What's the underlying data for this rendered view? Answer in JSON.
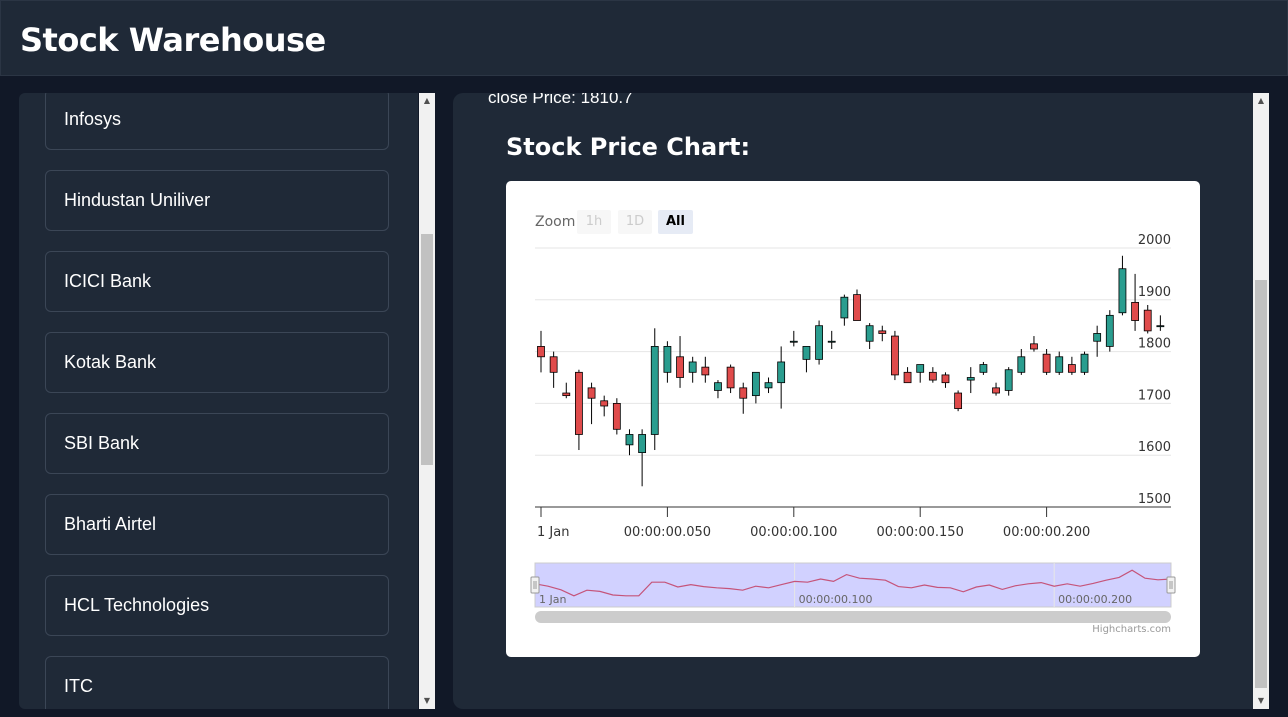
{
  "app": {
    "title": "Stock Warehouse"
  },
  "sidebar": {
    "items": [
      {
        "label": "Infosys"
      },
      {
        "label": "Hindustan Uniliver"
      },
      {
        "label": "ICICI Bank"
      },
      {
        "label": "Kotak Bank"
      },
      {
        "label": "SBI Bank"
      },
      {
        "label": "Bharti Airtel"
      },
      {
        "label": "HCL Technologies"
      },
      {
        "label": "ITC"
      }
    ]
  },
  "main": {
    "close_price": "close Price: 1810.7",
    "chart_heading": "Stock Price Chart:"
  },
  "chart": {
    "zoom_label": "Zoom",
    "zoom_buttons": [
      {
        "label": "1h",
        "state": "disabled"
      },
      {
        "label": "1D",
        "state": "disabled"
      },
      {
        "label": "All",
        "state": "active"
      }
    ],
    "credits": "Highcharts.com"
  },
  "colors": {
    "page_background": "#111827",
    "panel_background": "#1f2937",
    "candle_up": "#2a9d8f",
    "candle_down": "#e04b4b",
    "navigator_fill": "#ccccff",
    "navigator_line": "#c5547a"
  },
  "chart_data": {
    "type": "candlestick",
    "ylim": [
      1500,
      2000
    ],
    "yticks": [
      1500,
      1600,
      1700,
      1800,
      1900,
      2000
    ],
    "xtick_labels": [
      "1 Jan",
      "00:00:00.050",
      "00:00:00.100",
      "00:00:00.150",
      "00:00:00.200"
    ],
    "xtick_index": [
      0,
      10,
      20,
      30,
      40
    ],
    "navigator_labels": [
      "1 Jan",
      "00:00:00.100",
      "00:00:00.200"
    ],
    "navigator_label_index": [
      0,
      20,
      40
    ],
    "candles": [
      {
        "o": 1810,
        "h": 1840,
        "l": 1760,
        "c": 1790
      },
      {
        "o": 1790,
        "h": 1800,
        "l": 1730,
        "c": 1760
      },
      {
        "o": 1720,
        "h": 1740,
        "l": 1710,
        "c": 1715
      },
      {
        "o": 1760,
        "h": 1765,
        "l": 1610,
        "c": 1640
      },
      {
        "o": 1730,
        "h": 1740,
        "l": 1660,
        "c": 1710
      },
      {
        "o": 1705,
        "h": 1715,
        "l": 1675,
        "c": 1695
      },
      {
        "o": 1700,
        "h": 1710,
        "l": 1640,
        "c": 1650
      },
      {
        "o": 1620,
        "h": 1650,
        "l": 1600,
        "c": 1640
      },
      {
        "o": 1605,
        "h": 1650,
        "l": 1540,
        "c": 1640
      },
      {
        "o": 1640,
        "h": 1845,
        "l": 1610,
        "c": 1810
      },
      {
        "o": 1760,
        "h": 1820,
        "l": 1740,
        "c": 1810
      },
      {
        "o": 1790,
        "h": 1830,
        "l": 1730,
        "c": 1750
      },
      {
        "o": 1760,
        "h": 1790,
        "l": 1740,
        "c": 1780
      },
      {
        "o": 1770,
        "h": 1790,
        "l": 1740,
        "c": 1755
      },
      {
        "o": 1725,
        "h": 1745,
        "l": 1710,
        "c": 1740
      },
      {
        "o": 1770,
        "h": 1775,
        "l": 1720,
        "c": 1730
      },
      {
        "o": 1730,
        "h": 1740,
        "l": 1680,
        "c": 1710
      },
      {
        "o": 1715,
        "h": 1760,
        "l": 1700,
        "c": 1760
      },
      {
        "o": 1730,
        "h": 1750,
        "l": 1720,
        "c": 1740
      },
      {
        "o": 1740,
        "h": 1810,
        "l": 1690,
        "c": 1780
      },
      {
        "o": 1820,
        "h": 1840,
        "l": 1810,
        "c": 1820
      },
      {
        "o": 1785,
        "h": 1810,
        "l": 1760,
        "c": 1810
      },
      {
        "o": 1785,
        "h": 1860,
        "l": 1775,
        "c": 1850
      },
      {
        "o": 1820,
        "h": 1840,
        "l": 1805,
        "c": 1820
      },
      {
        "o": 1865,
        "h": 1910,
        "l": 1850,
        "c": 1905
      },
      {
        "o": 1910,
        "h": 1920,
        "l": 1860,
        "c": 1860
      },
      {
        "o": 1820,
        "h": 1855,
        "l": 1805,
        "c": 1850
      },
      {
        "o": 1840,
        "h": 1850,
        "l": 1820,
        "c": 1835
      },
      {
        "o": 1830,
        "h": 1840,
        "l": 1745,
        "c": 1755
      },
      {
        "o": 1760,
        "h": 1770,
        "l": 1740,
        "c": 1740
      },
      {
        "o": 1760,
        "h": 1775,
        "l": 1740,
        "c": 1775
      },
      {
        "o": 1760,
        "h": 1770,
        "l": 1740,
        "c": 1745
      },
      {
        "o": 1755,
        "h": 1760,
        "l": 1730,
        "c": 1740
      },
      {
        "o": 1720,
        "h": 1725,
        "l": 1685,
        "c": 1690
      },
      {
        "o": 1745,
        "h": 1770,
        "l": 1720,
        "c": 1750
      },
      {
        "o": 1760,
        "h": 1780,
        "l": 1755,
        "c": 1775
      },
      {
        "o": 1730,
        "h": 1740,
        "l": 1715,
        "c": 1720
      },
      {
        "o": 1725,
        "h": 1770,
        "l": 1715,
        "c": 1765
      },
      {
        "o": 1760,
        "h": 1805,
        "l": 1755,
        "c": 1790
      },
      {
        "o": 1815,
        "h": 1830,
        "l": 1800,
        "c": 1805
      },
      {
        "o": 1795,
        "h": 1805,
        "l": 1755,
        "c": 1760
      },
      {
        "o": 1760,
        "h": 1800,
        "l": 1755,
        "c": 1790
      },
      {
        "o": 1775,
        "h": 1790,
        "l": 1755,
        "c": 1760
      },
      {
        "o": 1760,
        "h": 1800,
        "l": 1755,
        "c": 1795
      },
      {
        "o": 1820,
        "h": 1850,
        "l": 1790,
        "c": 1835
      },
      {
        "o": 1810,
        "h": 1880,
        "l": 1800,
        "c": 1870
      },
      {
        "o": 1875,
        "h": 1985,
        "l": 1870,
        "c": 1960
      },
      {
        "o": 1895,
        "h": 1950,
        "l": 1840,
        "c": 1860
      },
      {
        "o": 1880,
        "h": 1890,
        "l": 1835,
        "c": 1840
      },
      {
        "o": 1850,
        "h": 1870,
        "l": 1840,
        "c": 1850
      }
    ]
  }
}
